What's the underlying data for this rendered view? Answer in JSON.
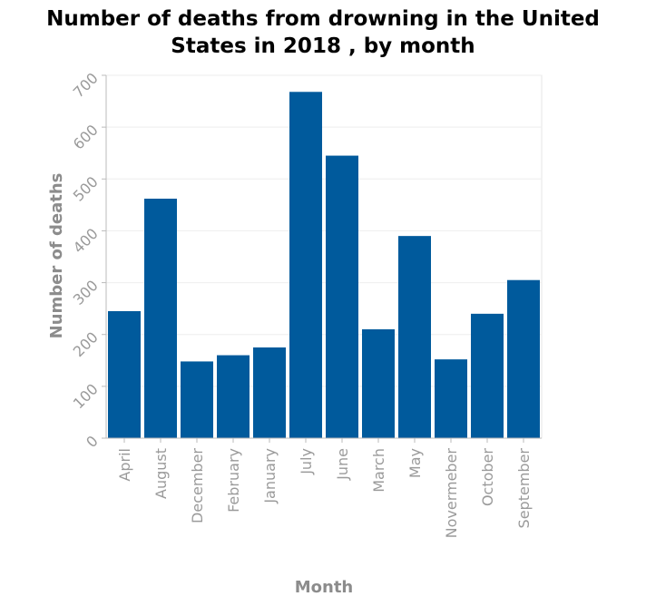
{
  "chart_data": {
    "type": "bar",
    "title_lines": [
      "Number of deaths from drowning in the United",
      "States in 2018 , by month"
    ],
    "xlabel": "Month",
    "ylabel": "Number of deaths",
    "categories": [
      "April",
      "August",
      "December",
      "February",
      "January",
      "July",
      "June",
      "March",
      "May",
      "Novermeber",
      "October",
      "September"
    ],
    "values": [
      245,
      462,
      148,
      160,
      175,
      668,
      545,
      210,
      390,
      152,
      240,
      305
    ],
    "ylim": [
      0,
      700
    ],
    "yticks": [
      0,
      100,
      200,
      300,
      400,
      500,
      600,
      700
    ],
    "grid": true,
    "bar_color": "#005a9c"
  }
}
